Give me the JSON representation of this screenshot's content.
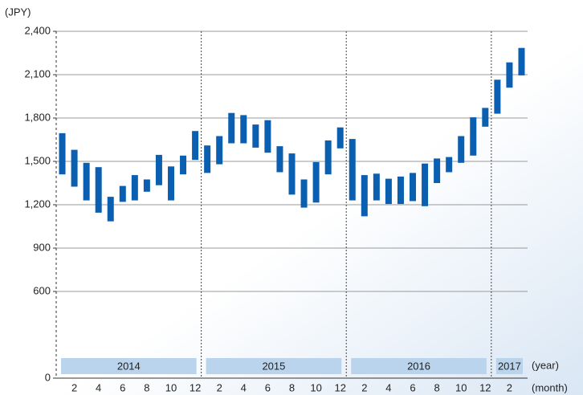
{
  "chart_data": {
    "type": "range_bar",
    "y_unit": "(JPY)",
    "year_label": "(year)",
    "month_label": "(month)",
    "color": "#0a5fb0",
    "band_color": "#b9d4ec",
    "grid": true,
    "ylim": [
      0,
      2400
    ],
    "yticks": [
      0,
      600,
      900,
      {
        "value": 1200,
        "label": "1,200"
      },
      {
        "value": 1500,
        "label": "1,500"
      },
      {
        "value": 1800,
        "label": "1,800"
      },
      {
        "value": 2100,
        "label": "2,100"
      },
      {
        "value": 2400,
        "label": "2,400"
      }
    ],
    "years": [
      "2014",
      "2015",
      "2016",
      "2017"
    ],
    "categories": [
      null,
      "2",
      null,
      "4",
      null,
      "6",
      null,
      "8",
      null,
      "10",
      null,
      "12",
      null,
      "2",
      null,
      "4",
      null,
      "6",
      null,
      "8",
      null,
      "10",
      null,
      "12",
      null,
      "2",
      null,
      "4",
      null,
      "6",
      null,
      "8",
      null,
      "10",
      null,
      "12",
      null,
      "2",
      null
    ],
    "low": [
      1410,
      1325,
      1230,
      1145,
      1085,
      1220,
      1230,
      1290,
      1335,
      1230,
      1410,
      1510,
      1420,
      1480,
      1625,
      1625,
      1595,
      1560,
      1425,
      1270,
      1180,
      1215,
      1410,
      1590,
      1230,
      1120,
      1230,
      1205,
      1205,
      1225,
      1190,
      1350,
      1425,
      1490,
      1540,
      1740,
      1830,
      2010,
      2095
    ],
    "high": [
      1695,
      1580,
      1490,
      1460,
      1255,
      1330,
      1405,
      1375,
      1545,
      1465,
      1540,
      1710,
      1610,
      1675,
      1835,
      1820,
      1755,
      1785,
      1605,
      1555,
      1375,
      1495,
      1645,
      1735,
      1655,
      1405,
      1415,
      1380,
      1395,
      1420,
      1485,
      1520,
      1530,
      1675,
      1805,
      1870,
      2065,
      2185,
      2285
    ]
  }
}
